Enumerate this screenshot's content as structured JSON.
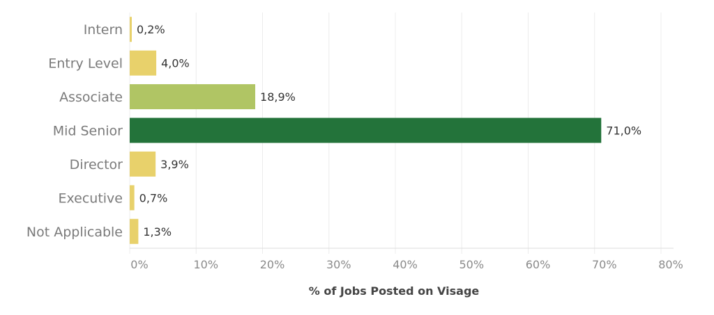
{
  "chart_data": {
    "type": "bar",
    "orientation": "horizontal",
    "categories": [
      "Intern",
      "Entry Level",
      "Associate",
      "Mid Senior",
      "Director",
      "Executive",
      "Not Applicable"
    ],
    "values": [
      0.2,
      4.0,
      18.9,
      71.0,
      3.9,
      0.7,
      1.3
    ],
    "value_labels": [
      "0,2%",
      "4,0%",
      "18,9%",
      "71,0%",
      "3,9%",
      "0,7%",
      "1,3%"
    ],
    "bar_colors": [
      "#e8d16b",
      "#e8d16b",
      "#b0c564",
      "#23733a",
      "#e8d16b",
      "#e8d16b",
      "#e8d16b"
    ],
    "xlim": [
      0,
      80
    ],
    "xticks": [
      0,
      10,
      20,
      30,
      40,
      50,
      60,
      70,
      80
    ],
    "xtick_labels": [
      "0%",
      "10%",
      "20%",
      "30%",
      "40%",
      "50%",
      "60%",
      "70%",
      "80%"
    ],
    "xlabel": "% of Jobs Posted on Visage",
    "ylabel": "",
    "title": "",
    "grid": true
  }
}
